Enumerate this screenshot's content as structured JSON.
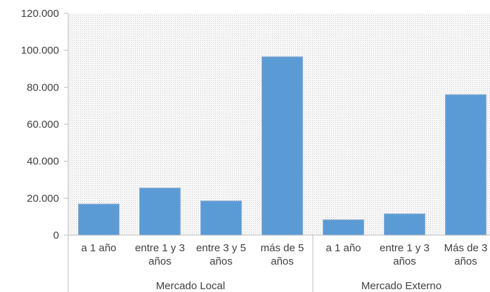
{
  "chart_data": {
    "type": "bar",
    "title": "",
    "xlabel": "",
    "ylabel": "",
    "ylim": [
      0,
      120000
    ],
    "yticks": [
      "0",
      "20.000",
      "40.000",
      "60.000",
      "80.000",
      "100.000",
      "120.000"
    ],
    "grid": false,
    "background": "dotted-gray",
    "bar_color": "#5b9bd5",
    "groups": [
      {
        "label": "Mercado Local",
        "categories": [
          {
            "lines": [
              "a 1 año"
            ],
            "value": 16800
          },
          {
            "lines": [
              "entre 1 y 3",
              "años"
            ],
            "value": 25500
          },
          {
            "lines": [
              "entre 3 y 5",
              "años"
            ],
            "value": 18500
          },
          {
            "lines": [
              "más de 5",
              "años"
            ],
            "value": 96500
          }
        ]
      },
      {
        "label": "Mercado Externo",
        "categories": [
          {
            "lines": [
              "a 1 año"
            ],
            "value": 8300
          },
          {
            "lines": [
              "entre 1 y 3",
              "años"
            ],
            "value": 11500
          },
          {
            "lines": [
              "Más de 3",
              "años"
            ],
            "value": 76000
          }
        ]
      }
    ]
  }
}
